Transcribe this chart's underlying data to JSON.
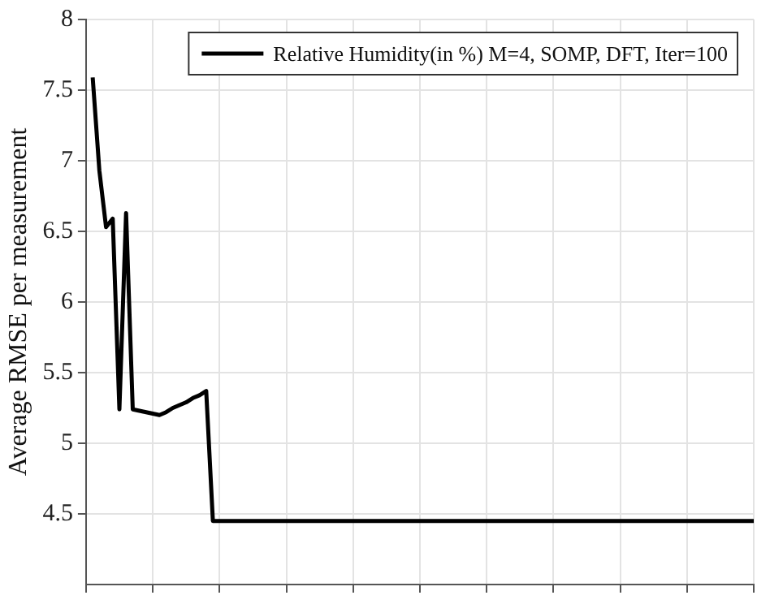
{
  "chart_data": {
    "type": "line",
    "ylabel": "Average RMSE per measurement",
    "categories": [
      null,
      null,
      null,
      null,
      null,
      null,
      null,
      null,
      null,
      null,
      null,
      null,
      null,
      null,
      null,
      null,
      null,
      null,
      null,
      null,
      null,
      null,
      null,
      null,
      null,
      null,
      null,
      null,
      null,
      null,
      null,
      null,
      null,
      null,
      null,
      null,
      null,
      null,
      null,
      null,
      null,
      null,
      null,
      null,
      null,
      null,
      null,
      null,
      null,
      null,
      null,
      null,
      null,
      null,
      null,
      null,
      null,
      null,
      null,
      null,
      null,
      null,
      null,
      null,
      null,
      null,
      null,
      null,
      null,
      null,
      null,
      null,
      null,
      null,
      null,
      null,
      null,
      null,
      null,
      null,
      null,
      null,
      null,
      null,
      null,
      null,
      null,
      null,
      null,
      null,
      null,
      null,
      null,
      null,
      null,
      null,
      null,
      null,
      null,
      null,
      null
    ],
    "series": [
      {
        "name": "Relative Humidity(in %) M=4, SOMP, DFT, Iter=100",
        "color": "#000000",
        "values": [
          null,
          7.59,
          6.93,
          6.53,
          6.59,
          5.24,
          6.63,
          5.24,
          5.23,
          5.22,
          5.21,
          5.2,
          5.22,
          5.25,
          5.27,
          5.29,
          5.32,
          5.34,
          5.37,
          4.45,
          4.45,
          4.45,
          4.45,
          4.45,
          4.45,
          4.45,
          4.45,
          4.45,
          4.45,
          4.45,
          4.45,
          4.45,
          4.45,
          4.45,
          4.45,
          4.45,
          4.45,
          4.45,
          4.45,
          4.45,
          4.45,
          4.45,
          4.45,
          4.45,
          4.45,
          4.45,
          4.45,
          4.45,
          4.45,
          4.45,
          4.45,
          4.45,
          4.45,
          4.45,
          4.45,
          4.45,
          4.45,
          4.45,
          4.45,
          4.45,
          4.45,
          4.45,
          4.45,
          4.45,
          4.45,
          4.45,
          4.45,
          4.45,
          4.45,
          4.45,
          4.45,
          4.45,
          4.45,
          4.45,
          4.45,
          4.45,
          4.45,
          4.45,
          4.45,
          4.45,
          4.45,
          4.45,
          4.45,
          4.45,
          4.45,
          4.45,
          4.45,
          4.45,
          4.45,
          4.45,
          4.45,
          4.45,
          4.45,
          4.45,
          4.45,
          4.45,
          4.45,
          4.45,
          4.45,
          4.45,
          4.45
        ]
      }
    ],
    "ylim": [
      4,
      8
    ],
    "yticks": [
      4.5,
      5,
      5.5,
      6,
      6.5,
      7,
      7.5,
      8
    ],
    "tick_labels": "y",
    "grid": true,
    "legend": "top right",
    "marker": "none",
    "line_style": "solid"
  }
}
